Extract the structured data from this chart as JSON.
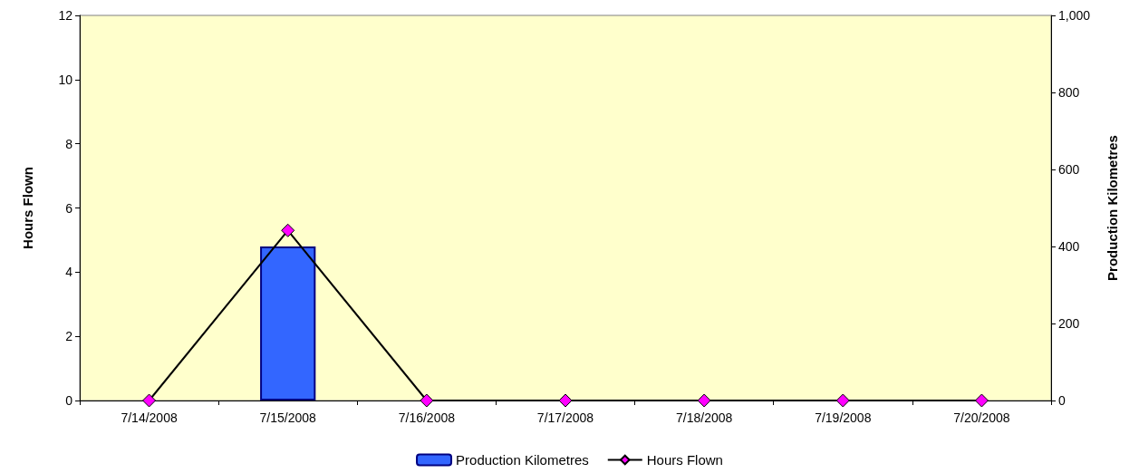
{
  "chart_data": {
    "type": "bar",
    "categories": [
      "7/14/2008",
      "7/15/2008",
      "7/16/2008",
      "7/17/2008",
      "7/18/2008",
      "7/19/2008",
      "7/20/2008"
    ],
    "series": [
      {
        "name": "Production Kilometres",
        "axis": "y2",
        "color": "#3366ff",
        "values": [
          0,
          400,
          0,
          0,
          0,
          0,
          0
        ]
      },
      {
        "name": "Hours Flown",
        "type": "line",
        "color": "#ff00ff",
        "marker": "diamond",
        "values": [
          0,
          5.3,
          0,
          0,
          0,
          0,
          0
        ]
      }
    ],
    "ylabel": "Hours Flown",
    "y2label": "Production Kilometres",
    "ylim": [
      0,
      12
    ],
    "yticks": [
      0,
      2,
      4,
      6,
      8,
      10,
      12
    ],
    "y2lim": [
      0,
      1000
    ],
    "y2ticks": [
      0,
      200,
      400,
      600,
      800,
      {
        "value": 1000,
        "label": "1,000"
      }
    ],
    "grid": false,
    "legend": "bottom"
  }
}
